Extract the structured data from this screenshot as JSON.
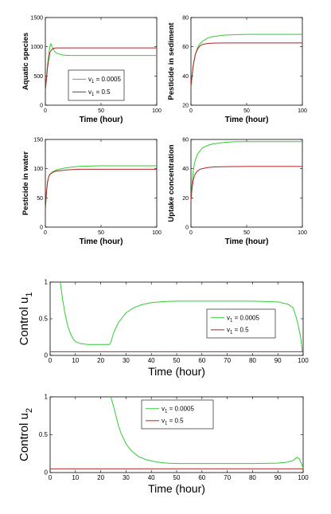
{
  "palette": {
    "green": "#33cc33",
    "red": "#b22222",
    "axis": "#000000",
    "background": "#ffffff"
  },
  "chart_data": [
    {
      "type": "line",
      "xlabel": "Time (hour)",
      "ylabel": "Aquatic species",
      "xlim": [
        0,
        100
      ],
      "ylim": [
        0,
        1500
      ],
      "xticks": [
        "0",
        "50",
        "100"
      ],
      "yticks": [
        "0",
        "500",
        "1000",
        "1500"
      ],
      "legend": {
        "position": "lower-left",
        "entries": [
          {
            "symbol": "v",
            "sub": "1",
            "value": " = 0.0005"
          },
          {
            "symbol": "v",
            "sub": "1",
            "value": " = 0.5"
          }
        ]
      },
      "series": [
        {
          "color": "green",
          "x": [
            0,
            2,
            4,
            5,
            6,
            8,
            10,
            15,
            20,
            30,
            50,
            100
          ],
          "y": [
            250,
            700,
            1000,
            1050,
            1000,
            930,
            890,
            860,
            850,
            850,
            850,
            850
          ]
        },
        {
          "color": "red",
          "x": [
            0,
            2,
            4,
            6,
            8,
            10,
            20,
            50,
            100
          ],
          "y": [
            250,
            650,
            900,
            960,
            975,
            980,
            980,
            980,
            980
          ]
        }
      ]
    },
    {
      "type": "line",
      "xlabel": "Time (hour)",
      "ylabel": "Pesticide in sediment",
      "xlim": [
        0,
        100
      ],
      "ylim": [
        20,
        80
      ],
      "xticks": [
        "0",
        "50",
        "100"
      ],
      "yticks": [
        "20",
        "40",
        "60",
        "80"
      ],
      "series": [
        {
          "color": "green",
          "x": [
            0,
            2,
            4,
            6,
            8,
            10,
            15,
            20,
            30,
            40,
            50,
            100
          ],
          "y": [
            33,
            47,
            55,
            59.5,
            62,
            63.5,
            66,
            67,
            68,
            68.3,
            68.5,
            68.5
          ]
        },
        {
          "color": "red",
          "x": [
            0,
            2,
            4,
            6,
            8,
            10,
            15,
            20,
            30,
            50,
            100
          ],
          "y": [
            33,
            47,
            55,
            58.5,
            60.5,
            61.5,
            62.3,
            62.5,
            62.6,
            62.6,
            62.6
          ]
        }
      ]
    },
    {
      "type": "line",
      "xlabel": "Time (hour)",
      "ylabel": "Pesticide in water",
      "xlim": [
        0,
        100
      ],
      "ylim": [
        0,
        150
      ],
      "xticks": [
        "0",
        "50",
        "100"
      ],
      "yticks": [
        "0",
        "50",
        "100",
        "150"
      ],
      "series": [
        {
          "color": "green",
          "x": [
            0,
            1,
            2,
            3,
            4,
            6,
            8,
            10,
            15,
            20,
            30,
            50,
            100
          ],
          "y": [
            30,
            60,
            78,
            86,
            90,
            94,
            96,
            98,
            100,
            102,
            104,
            105,
            105
          ]
        },
        {
          "color": "red",
          "x": [
            0,
            1,
            2,
            3,
            4,
            6,
            8,
            10,
            15,
            20,
            30,
            50,
            100
          ],
          "y": [
            30,
            60,
            78,
            86,
            90,
            93,
            95,
            96,
            97,
            98,
            99,
            99,
            99
          ]
        }
      ]
    },
    {
      "type": "line",
      "xlabel": "Time (hour)",
      "ylabel": "Uptake concentration",
      "xlim": [
        0,
        100
      ],
      "ylim": [
        0,
        60
      ],
      "xticks": [
        "0",
        "50",
        "100"
      ],
      "yticks": [
        "0",
        "20",
        "40",
        "60"
      ],
      "series": [
        {
          "color": "green",
          "x": [
            0,
            1,
            2,
            3,
            4,
            6,
            8,
            10,
            15,
            20,
            30,
            40,
            50,
            100
          ],
          "y": [
            18,
            30,
            38,
            43,
            46,
            50,
            52,
            54,
            56,
            57,
            58,
            58.5,
            58.5,
            58.5
          ]
        },
        {
          "color": "red",
          "x": [
            0,
            1,
            2,
            3,
            4,
            6,
            8,
            10,
            15,
            20,
            30,
            50,
            100
          ],
          "y": [
            18,
            27,
            32,
            35,
            36.5,
            38.5,
            39.5,
            40,
            40.8,
            41.2,
            41.4,
            41.5,
            41.5
          ]
        }
      ]
    },
    {
      "type": "line",
      "xlabel": "Time (hour)",
      "ylabel": "Control u",
      "ylabel_sub": "1",
      "xlim": [
        0,
        100
      ],
      "ylim": [
        0,
        1
      ],
      "xticks": [
        "0",
        "10",
        "20",
        "30",
        "40",
        "50",
        "60",
        "70",
        "80",
        "90",
        "100"
      ],
      "yticks": [
        "0",
        "0.5",
        "1"
      ],
      "legend": {
        "position": "right",
        "entries": [
          {
            "symbol": "v",
            "sub": "1",
            "value": " = 0.0005"
          },
          {
            "symbol": "v",
            "sub": "1",
            "value": " = 0.5"
          }
        ]
      },
      "series": [
        {
          "color": "green",
          "x": [
            4,
            5,
            6,
            7,
            8,
            9,
            10,
            12,
            15,
            18,
            22,
            23.5,
            24,
            25,
            27,
            30,
            33,
            36,
            40,
            45,
            50,
            60,
            70,
            80,
            90,
            94,
            96,
            97,
            98,
            99,
            99.7
          ],
          "y": [
            1,
            0.75,
            0.55,
            0.4,
            0.3,
            0.23,
            0.19,
            0.16,
            0.15,
            0.15,
            0.15,
            0.15,
            0.18,
            0.3,
            0.45,
            0.58,
            0.65,
            0.69,
            0.72,
            0.735,
            0.74,
            0.74,
            0.74,
            0.74,
            0.73,
            0.7,
            0.65,
            0.55,
            0.42,
            0.25,
            0.05
          ]
        },
        {
          "color": "red",
          "x": [
            0,
            100
          ],
          "y": [
            0.05,
            0.05
          ]
        }
      ]
    },
    {
      "type": "line",
      "xlabel": "Time (hour)",
      "ylabel": "Control u",
      "ylabel_sub": "2",
      "xlim": [
        0,
        100
      ],
      "ylim": [
        0,
        1
      ],
      "xticks": [
        "0",
        "10",
        "20",
        "30",
        "40",
        "50",
        "60",
        "70",
        "80",
        "90",
        "100"
      ],
      "yticks": [
        "0",
        "0.5",
        "1"
      ],
      "legend": {
        "position": "top-center",
        "entries": [
          {
            "symbol": "v",
            "sub": "1",
            "value": " = 0.0005"
          },
          {
            "symbol": "v",
            "sub": "1",
            "value": " = 0.5"
          }
        ]
      },
      "series": [
        {
          "color": "green",
          "x": [
            24,
            25,
            26,
            27,
            28,
            30,
            32,
            35,
            38,
            42,
            46,
            50,
            60,
            70,
            80,
            90,
            94,
            96,
            97.5,
            98.5,
            99.3,
            100
          ],
          "y": [
            1,
            0.88,
            0.75,
            0.62,
            0.52,
            0.38,
            0.29,
            0.21,
            0.17,
            0.14,
            0.125,
            0.12,
            0.12,
            0.12,
            0.12,
            0.125,
            0.14,
            0.16,
            0.2,
            0.18,
            0.12,
            0.06
          ]
        },
        {
          "color": "red",
          "x": [
            0,
            100
          ],
          "y": [
            0.05,
            0.05
          ]
        }
      ]
    }
  ]
}
